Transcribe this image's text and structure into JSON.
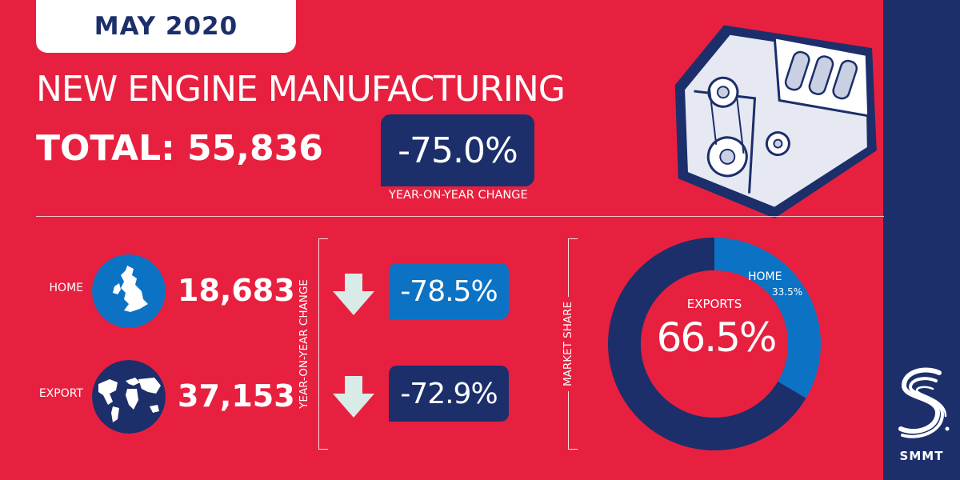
{
  "header": {
    "date": "MAY 2020",
    "title": "NEW ENGINE MANUFACTURING",
    "total": "TOTAL: 55,836",
    "yoy_change": "-75.0%",
    "yoy_caption": "YEAR-ON-YEAR CHANGE"
  },
  "rows": {
    "home": {
      "label": "HOME",
      "value": "18,683",
      "change": "-78.5%"
    },
    "export": {
      "label": "EXPORT",
      "value": "37,153",
      "change": "-72.9%"
    }
  },
  "side_labels": {
    "yoy": "YEAR-ON-YEAR CHANGE",
    "market_share": "MARKET SHARE"
  },
  "chart_data": {
    "type": "pie",
    "title": "MARKET SHARE",
    "slices": [
      {
        "label": "EXPORTS",
        "value": 66.5,
        "display": "66.5%",
        "color": "#1c2f6b"
      },
      {
        "label": "HOME",
        "value": 33.5,
        "display": "33.5%",
        "color": "#0c72c4"
      }
    ]
  },
  "colors": {
    "background": "#e8203f",
    "navy": "#1c2f6b",
    "blue": "#0c72c4",
    "arrow": "#d8ebe6"
  },
  "brand": {
    "name": "SMMT"
  },
  "icons": {
    "home_map": "uk-map-icon",
    "export_map": "world-map-icon",
    "arrow": "arrow-down-icon",
    "engine": "engine-block-icon"
  }
}
